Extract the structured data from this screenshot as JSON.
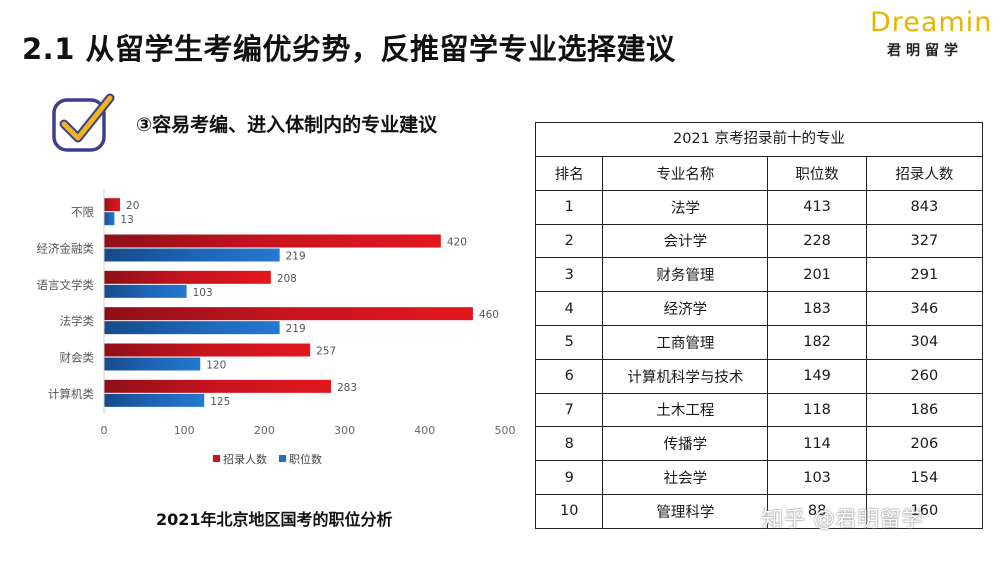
{
  "header": {
    "title": "2.1 从留学生考编优劣势，反推留学专业选择建议"
  },
  "brand": {
    "logo": "Dreamin",
    "name": "君明留学"
  },
  "subtitle": "③容易考编、进入体制内的专业建议",
  "chart_caption": "2021年北京地区国考的职位分析",
  "chart_data": {
    "type": "bar",
    "orientation": "horizontal",
    "categories": [
      "不限",
      "经济金融类",
      "语言文学类",
      "法学类",
      "财会类",
      "计算机类"
    ],
    "series": [
      {
        "name": "招录人数",
        "values": [
          20,
          420,
          208,
          460,
          257,
          283
        ],
        "color": "#d0111b"
      },
      {
        "name": "职位数",
        "values": [
          13,
          219,
          103,
          219,
          120,
          125
        ],
        "color": "#1f6fc5"
      }
    ],
    "x_ticks": [
      0,
      100,
      200,
      300,
      400,
      500
    ],
    "xlim": [
      0,
      500
    ],
    "grid": false,
    "legend_position": "bottom"
  },
  "table": {
    "caption": "2021 京考招录前十的专业",
    "headers": [
      "排名",
      "专业名称",
      "职位数",
      "招录人数"
    ],
    "rows": [
      [
        "1",
        "法学",
        "413",
        "843"
      ],
      [
        "2",
        "会计学",
        "228",
        "327"
      ],
      [
        "3",
        "财务管理",
        "201",
        "291"
      ],
      [
        "4",
        "经济学",
        "183",
        "346"
      ],
      [
        "5",
        "工商管理",
        "182",
        "304"
      ],
      [
        "6",
        "计算机科学与技术",
        "149",
        "260"
      ],
      [
        "7",
        "土木工程",
        "118",
        "186"
      ],
      [
        "8",
        "传播学",
        "114",
        "206"
      ],
      [
        "9",
        "社会学",
        "103",
        "154"
      ],
      [
        "10",
        "管理科学",
        "88",
        "160"
      ]
    ]
  },
  "watermark": "知乎 @君明留学",
  "icons": {
    "check": "checkbox-check-icon"
  }
}
